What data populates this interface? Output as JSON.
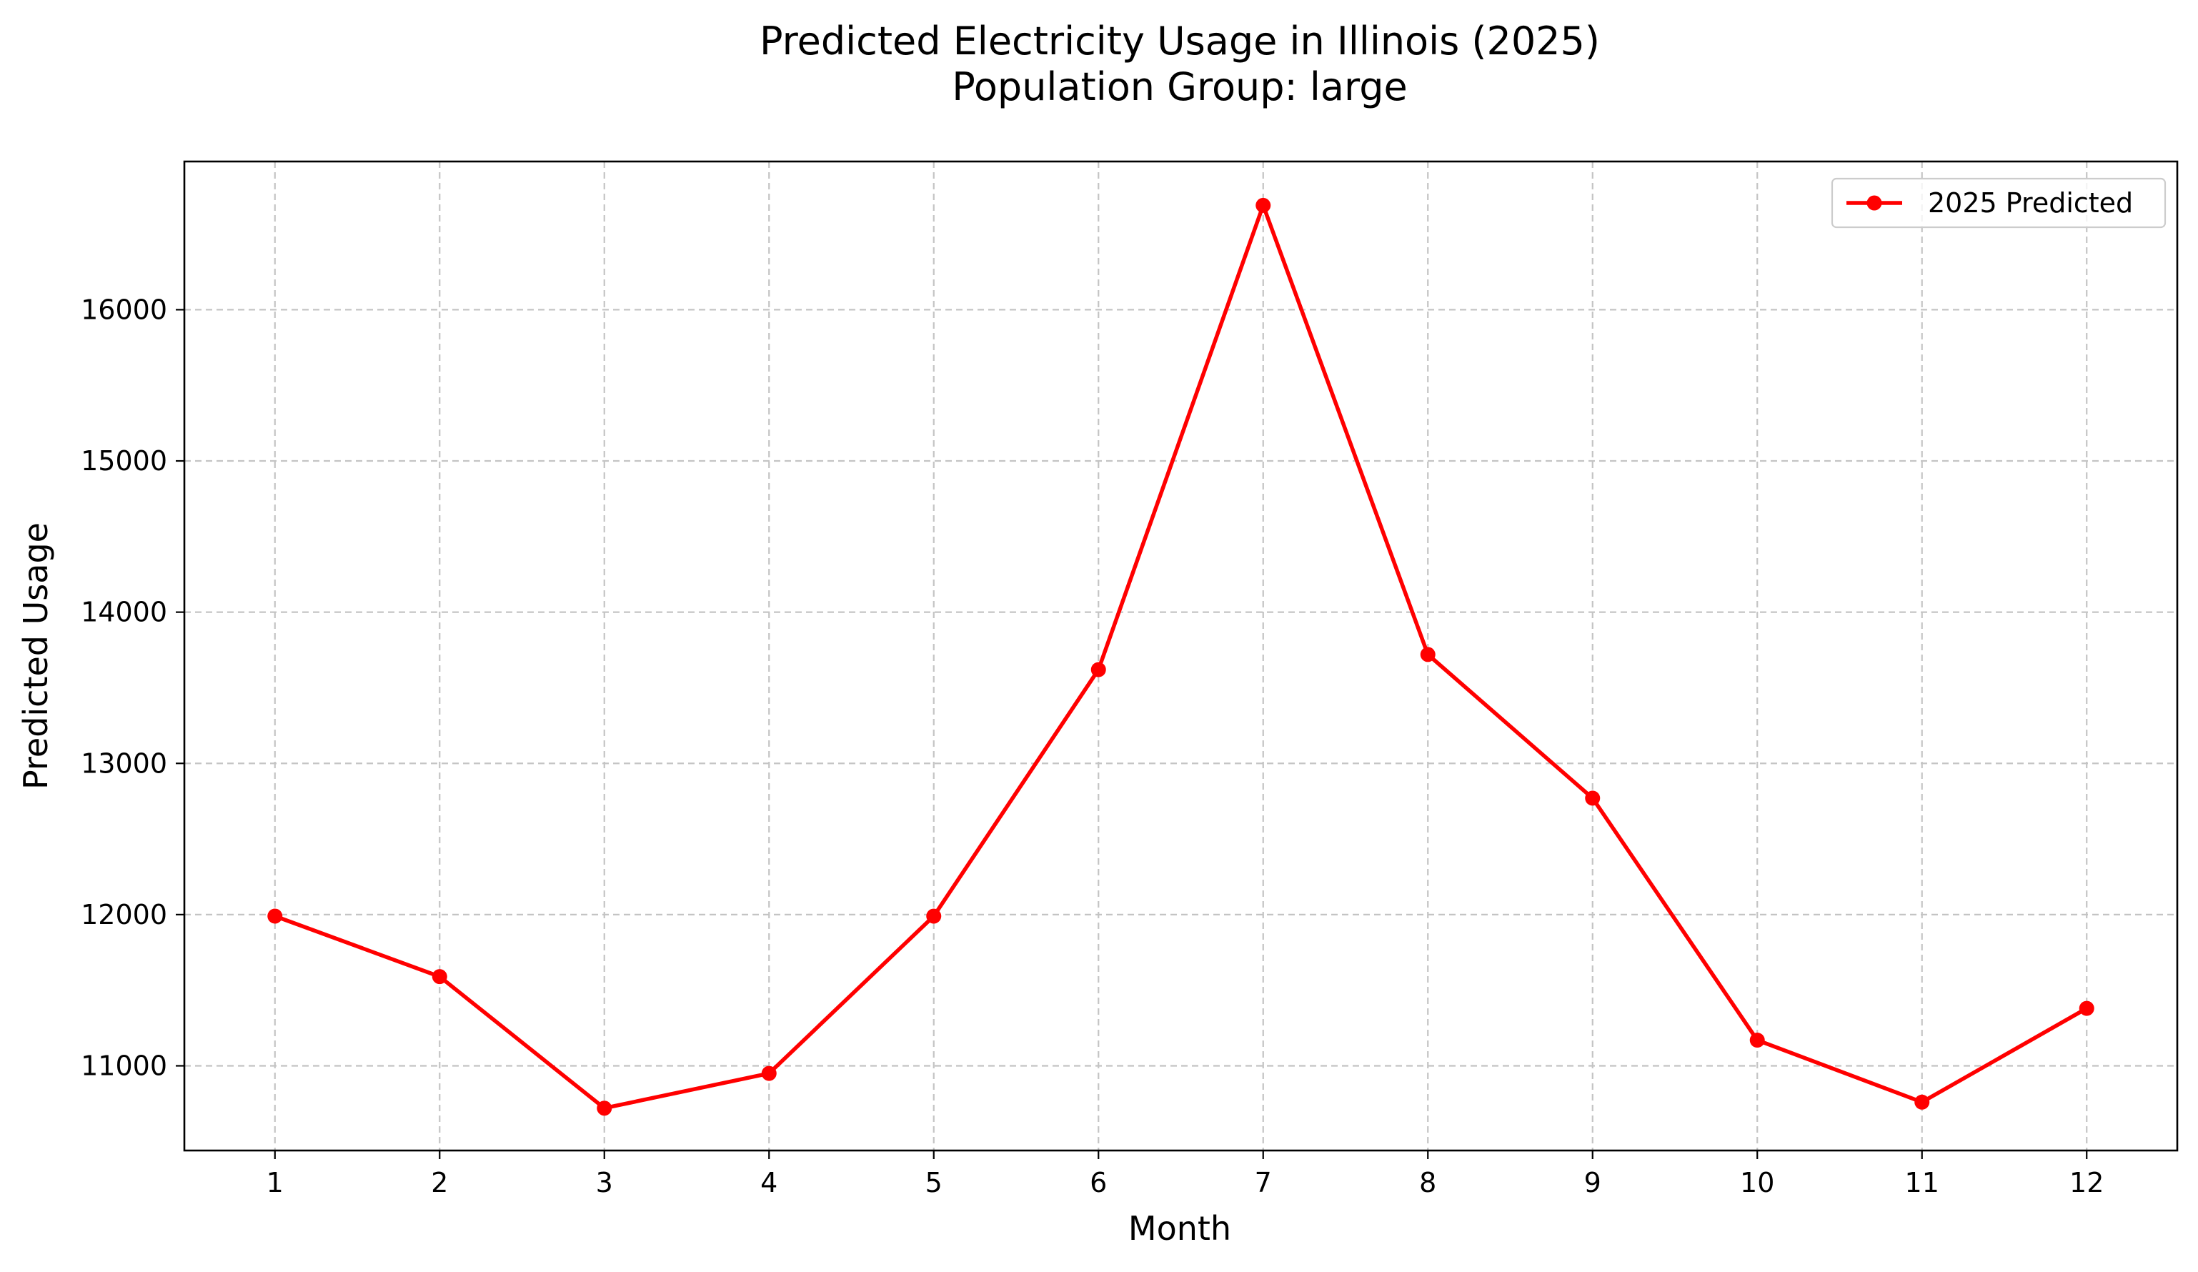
{
  "chart_data": {
    "type": "line",
    "title": "Predicted Electricity Usage in Illinois (2025)",
    "subtitle": "Population Group: large",
    "xlabel": "Month",
    "ylabel": "Predicted Usage",
    "x": [
      1,
      2,
      3,
      4,
      5,
      6,
      7,
      8,
      9,
      10,
      11,
      12
    ],
    "x_tick_labels": [
      "1",
      "2",
      "3",
      "4",
      "5",
      "6",
      "7",
      "8",
      "9",
      "10",
      "11",
      "12"
    ],
    "y_ticks": [
      11000,
      12000,
      13000,
      14000,
      15000,
      16000
    ],
    "y_tick_labels": [
      "11000",
      "12000",
      "13000",
      "14000",
      "15000",
      "16000"
    ],
    "xlim": [
      0.45,
      12.55
    ],
    "ylim": [
      10440,
      16980
    ],
    "grid": true,
    "grid_style": "dashed",
    "legend_position": "top-right",
    "series": [
      {
        "name": "2025 Predicted",
        "color": "#ff0000",
        "marker": "circle",
        "values": [
          11990,
          11590,
          10720,
          10950,
          11990,
          13620,
          16690,
          13720,
          12770,
          11170,
          10760,
          11380
        ]
      }
    ]
  }
}
